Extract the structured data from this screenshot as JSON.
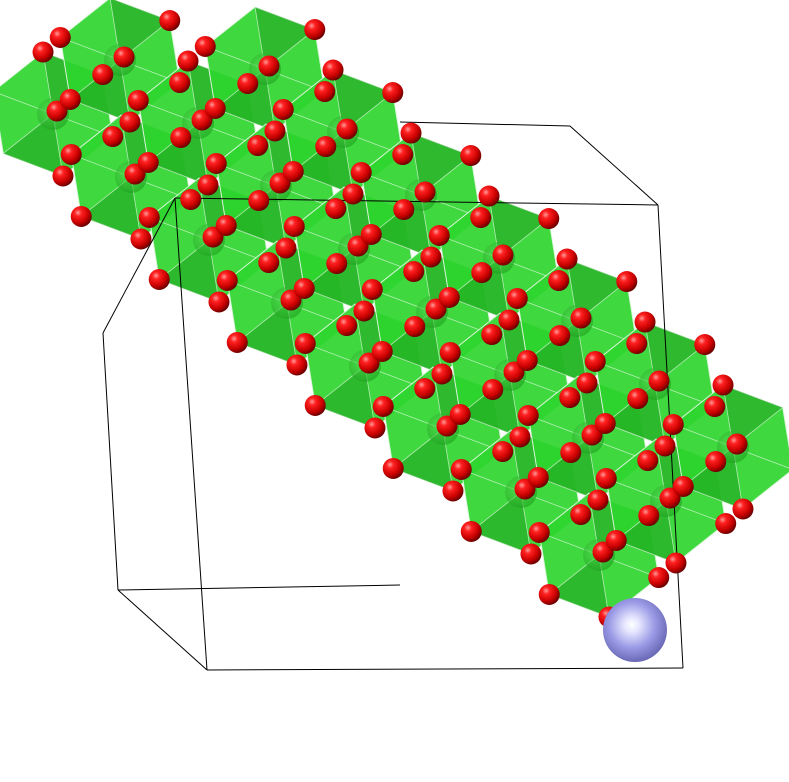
{
  "scene": {
    "colors": {
      "background": "#ffffff",
      "octahedron_face": "#2fd62f",
      "octahedron_dark": "#1f9e1f",
      "octahedron_edge": "#d9f5d9",
      "oxygen": "#e00000",
      "oxygen_highlight": "#ff9a9a",
      "dopant": "#8a8ae0",
      "dopant_highlight": "#f0f0ff",
      "cell_line": "#000000"
    },
    "atoms": {
      "oxygen_label": "oxygen-atom",
      "metal_center_label": "octahedral-center-atom",
      "dopant_label": "dopant-atom"
    }
  }
}
